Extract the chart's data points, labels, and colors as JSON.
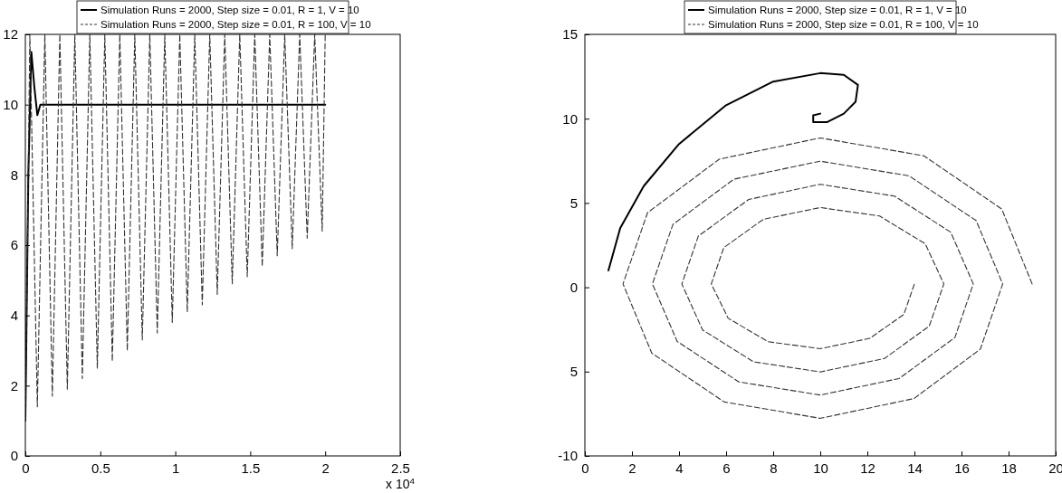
{
  "chart_data": [
    {
      "type": "line",
      "xlabel": "x 10$^{4}$",
      "xlim": [
        0,
        2.5
      ],
      "xticks": [
        0,
        0.5,
        1,
        1.5,
        2,
        2.5
      ],
      "ylim": [
        0,
        12
      ],
      "yticks": [
        0,
        2,
        4,
        6,
        8,
        10,
        12
      ],
      "legend": "top",
      "grid": false,
      "marker": "none",
      "series": [
        {
          "name": "Simulation Runs = 2000, Step size = 0.01, R = 1, V = 10",
          "color": "#000000",
          "line_style": "solid",
          "x": [
            0,
            0.02,
            0.04,
            0.06,
            0.08,
            0.1,
            0.12,
            2.0
          ],
          "values": [
            1,
            8,
            11.5,
            10.5,
            9.7,
            10,
            10,
            10
          ]
        },
        {
          "name": "Simulation Runs = 2000, Step size = 0.01, R = 100, V = 10",
          "color": "#333333",
          "line_style": "dashed",
          "x": [
            0,
            0.03,
            0.08,
            0.13,
            0.18,
            0.23,
            0.28,
            0.33,
            0.38,
            0.43,
            0.48,
            0.53,
            0.58,
            0.63,
            0.68,
            0.73,
            0.78,
            0.83,
            0.88,
            0.93,
            0.98,
            1.03,
            1.08,
            1.13,
            1.18,
            1.23,
            1.28,
            1.33,
            1.38,
            1.43,
            1.48,
            1.53,
            1.58,
            1.63,
            1.68,
            1.73,
            1.78,
            1.83,
            1.88,
            1.93,
            1.98,
            2.0
          ],
          "values": [
            1,
            12,
            1.4,
            12,
            1.7,
            12,
            1.9,
            12,
            2.2,
            12,
            2.5,
            12,
            2.7,
            12,
            3.0,
            12,
            3.3,
            12,
            3.5,
            12,
            3.8,
            12,
            4.1,
            12,
            4.3,
            12,
            4.6,
            12,
            4.9,
            12,
            5.1,
            12,
            5.4,
            12,
            5.7,
            12,
            5.9,
            12,
            6.2,
            12,
            6.4,
            12
          ]
        }
      ]
    },
    {
      "type": "line",
      "xlim": [
        0,
        20
      ],
      "xticks": [
        0,
        2,
        4,
        6,
        8,
        10,
        12,
        14,
        16,
        18,
        20
      ],
      "ylim": [
        -10,
        15
      ],
      "yticks": [
        -10,
        {
          "value": -5,
          "label": "5"
        },
        0,
        5,
        10,
        15
      ],
      "legend": "top",
      "grid": false,
      "marker": "none",
      "series": [
        {
          "name": "Simulation Runs = 2000, Step size = 0.01, R = 1, V = 10",
          "color": "#000000",
          "line_style": "solid",
          "x": [
            1,
            1.5,
            2.5,
            4,
            6,
            8,
            10,
            11,
            11.6,
            11.5,
            11,
            10.3,
            9.7,
            9.7,
            10
          ],
          "values": [
            1,
            3.5,
            6,
            8.5,
            10.8,
            12.2,
            12.7,
            12.6,
            12,
            11,
            10.3,
            9.8,
            9.8,
            10.2,
            10.3
          ]
        },
        {
          "name": "Simulation Runs = 2000, Step size = 0.01, R = 100, V = 10",
          "color": "#333333",
          "line_style": "dashed",
          "x": [
            19,
            17.71,
            14.4,
            10,
            5.71,
            2.66,
            1.62,
            2.84,
            5.92,
            10,
            13.98,
            16.8,
            17.75,
            16.62,
            13.77,
            10,
            6.33,
            3.74,
            2.87,
            3.92,
            6.54,
            10,
            13.35,
            15.72,
            16.5,
            15.54,
            13.15,
            10,
            6.96,
            4.82,
            4.12,
            5,
            7.17,
            10,
            12.73,
            14.63,
            15.25,
            14.46,
            12.52,
            10,
            7.58,
            5.9,
            5.37,
            6.09,
            7.79,
            10,
            12.1,
            13.55,
            14
          ],
          "values": [
            0.2,
            4.64,
            7.8,
            8.86,
            7.6,
            4.42,
            0.2,
            -3.9,
            -6.8,
            -7.77,
            -6.6,
            -3.67,
            0.2,
            3.96,
            6.61,
            7.48,
            6.41,
            3.73,
            0.2,
            -3.21,
            -5.61,
            -6.39,
            -5.41,
            -2.98,
            0.2,
            3.27,
            5.41,
            6.11,
            5.21,
            3.04,
            0.2,
            -2.53,
            -4.42,
            -5.02,
            -4.22,
            -2.3,
            0.2,
            2.58,
            4.23,
            4.73,
            4.03,
            2.35,
            0.2,
            -1.84,
            -3.23,
            -3.64,
            -3.03,
            -1.61,
            0.2
          ]
        }
      ]
    }
  ]
}
